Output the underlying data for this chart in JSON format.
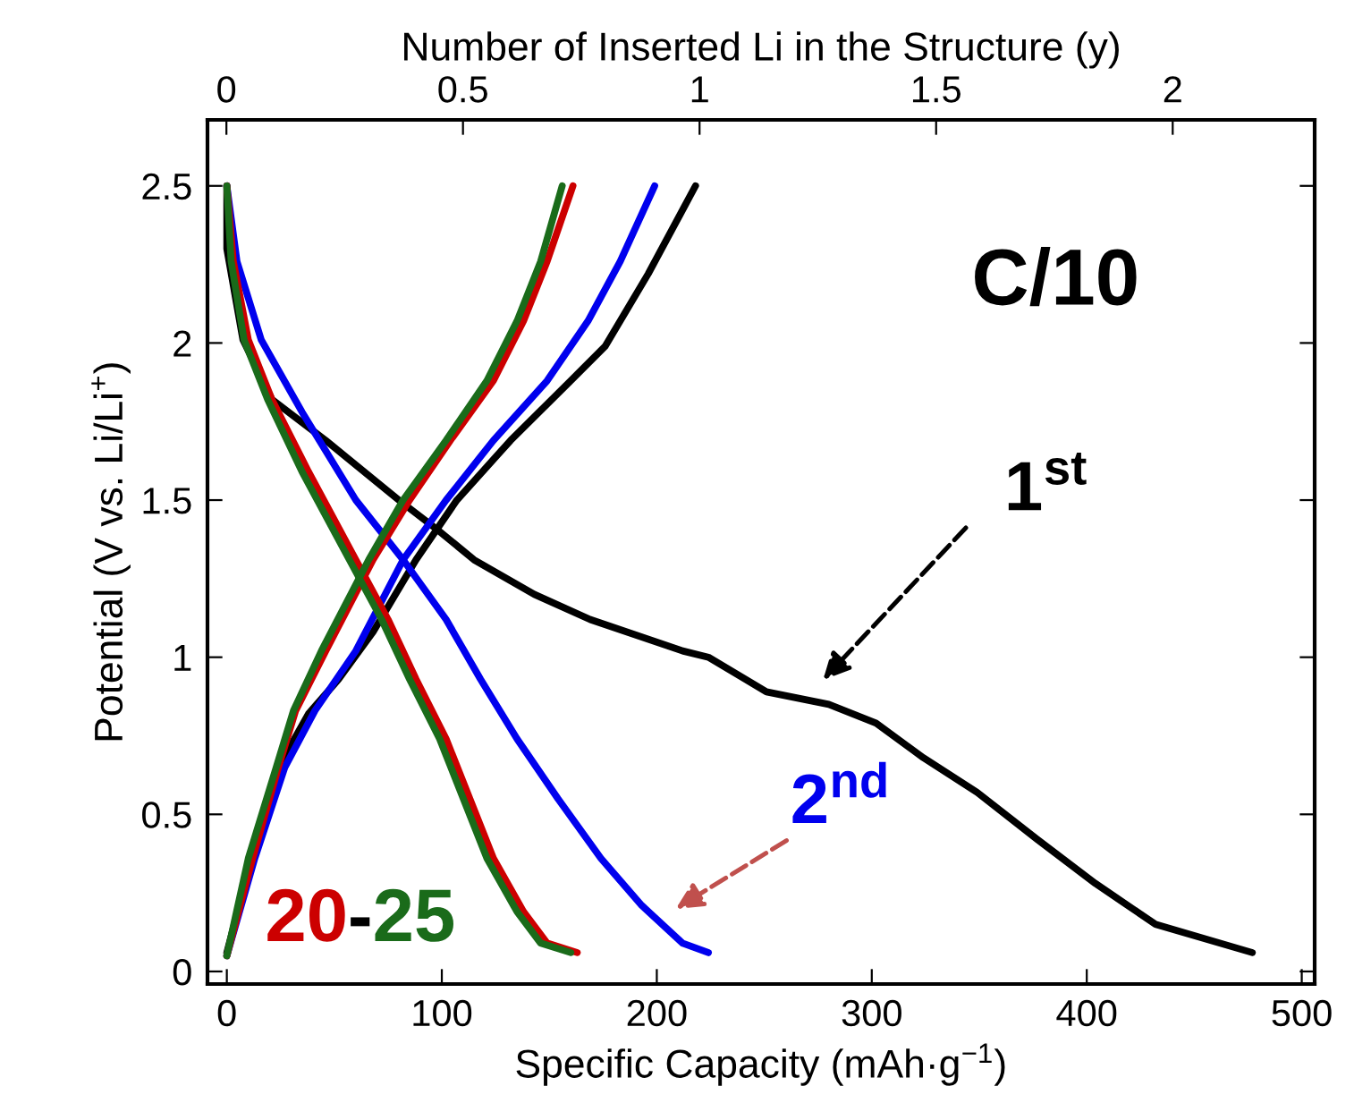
{
  "chart_data": {
    "type": "line",
    "xlabel": "Specific Capacity (mAh·g$^{−1}$)",
    "ylabel": "Potential (V vs. Li/Li$^{+}$)",
    "x2label": "Number of Inserted Li in the Structure (y)",
    "xlim": [
      -9,
      506
    ],
    "xticks": [
      0,
      100,
      200,
      300,
      400,
      500
    ],
    "ylim": [
      -0.04,
      2.71
    ],
    "yticks": [
      0,
      0.5,
      1,
      1.5,
      2,
      2.5
    ],
    "x2lim": [
      -0.04,
      2.3
    ],
    "x2ticks": [
      0,
      0.5,
      1,
      1.5,
      2
    ],
    "grid": false,
    "legend": false,
    "marker": "none",
    "line_style": "solid",
    "annotations": [
      "C/10",
      "1$^{st}$",
      "2$^{nd}$",
      "20",
      "-",
      "25"
    ],
    "series": [
      {
        "color": "#000000",
        "x": [
          0,
          0,
          7.5,
          21,
          46,
          80,
          99,
          115,
          143,
          169,
          212,
          224,
          251,
          280,
          302,
          324,
          349,
          377,
          404,
          432,
          477
        ],
        "values": [
          2.5,
          2.3,
          2.01,
          1.82,
          1.69,
          1.5,
          1.4,
          1.31,
          1.2,
          1.12,
          1.02,
          1.0,
          0.89,
          0.85,
          0.79,
          0.68,
          0.57,
          0.42,
          0.28,
          0.15,
          0.06
        ]
      },
      {
        "color": "#000000",
        "x": [
          0,
          11.6,
          24,
          38,
          52,
          68,
          88,
          107,
          132,
          160,
          176,
          196,
          218
        ],
        "values": [
          0.06,
          0.36,
          0.65,
          0.82,
          0.93,
          1.08,
          1.31,
          1.5,
          1.69,
          1.88,
          1.99,
          2.22,
          2.5
        ]
      },
      {
        "color": "#0000ee",
        "x": [
          0,
          4.7,
          16,
          35,
          60,
          82,
          102,
          118,
          135,
          154,
          174,
          193,
          212,
          224
        ],
        "values": [
          2.5,
          2.26,
          2.01,
          1.78,
          1.5,
          1.31,
          1.12,
          0.93,
          0.74,
          0.55,
          0.36,
          0.21,
          0.09,
          0.06
        ]
      },
      {
        "color": "#0000ee",
        "x": [
          0,
          13,
          27,
          41,
          60,
          82,
          102,
          124,
          149,
          168,
          183,
          199
        ],
        "values": [
          0.05,
          0.36,
          0.65,
          0.83,
          1.02,
          1.31,
          1.5,
          1.69,
          1.88,
          2.07,
          2.26,
          2.5
        ]
      },
      {
        "color": "#cc0000",
        "x": [
          0,
          3,
          10,
          21,
          38,
          60,
          75,
          88,
          102,
          113,
          124,
          138,
          149,
          163
        ],
        "values": [
          2.5,
          2.26,
          2.01,
          1.82,
          1.59,
          1.31,
          1.12,
          0.93,
          0.74,
          0.55,
          0.36,
          0.19,
          0.09,
          0.06
        ]
      },
      {
        "color": "#cc0000",
        "x": [
          0,
          12,
          24,
          32,
          46,
          68,
          85,
          104,
          124,
          138,
          149,
          161
        ],
        "values": [
          0.05,
          0.36,
          0.65,
          0.83,
          1.02,
          1.31,
          1.5,
          1.69,
          1.88,
          2.07,
          2.26,
          2.5
        ]
      },
      {
        "color": "#1a6b1a",
        "x": [
          0,
          2,
          8,
          19,
          35,
          57,
          72,
          85,
          99,
          110,
          121,
          135,
          146,
          160
        ],
        "values": [
          2.5,
          2.26,
          2.01,
          1.82,
          1.59,
          1.31,
          1.12,
          0.93,
          0.74,
          0.55,
          0.36,
          0.19,
          0.09,
          0.06
        ]
      },
      {
        "color": "#1a6b1a",
        "x": [
          0,
          10,
          23,
          31,
          44,
          66,
          82,
          102,
          121,
          135,
          146,
          156
        ],
        "values": [
          0.05,
          0.36,
          0.65,
          0.83,
          1.02,
          1.31,
          1.5,
          1.69,
          1.88,
          2.07,
          2.26,
          2.5
        ]
      }
    ]
  }
}
